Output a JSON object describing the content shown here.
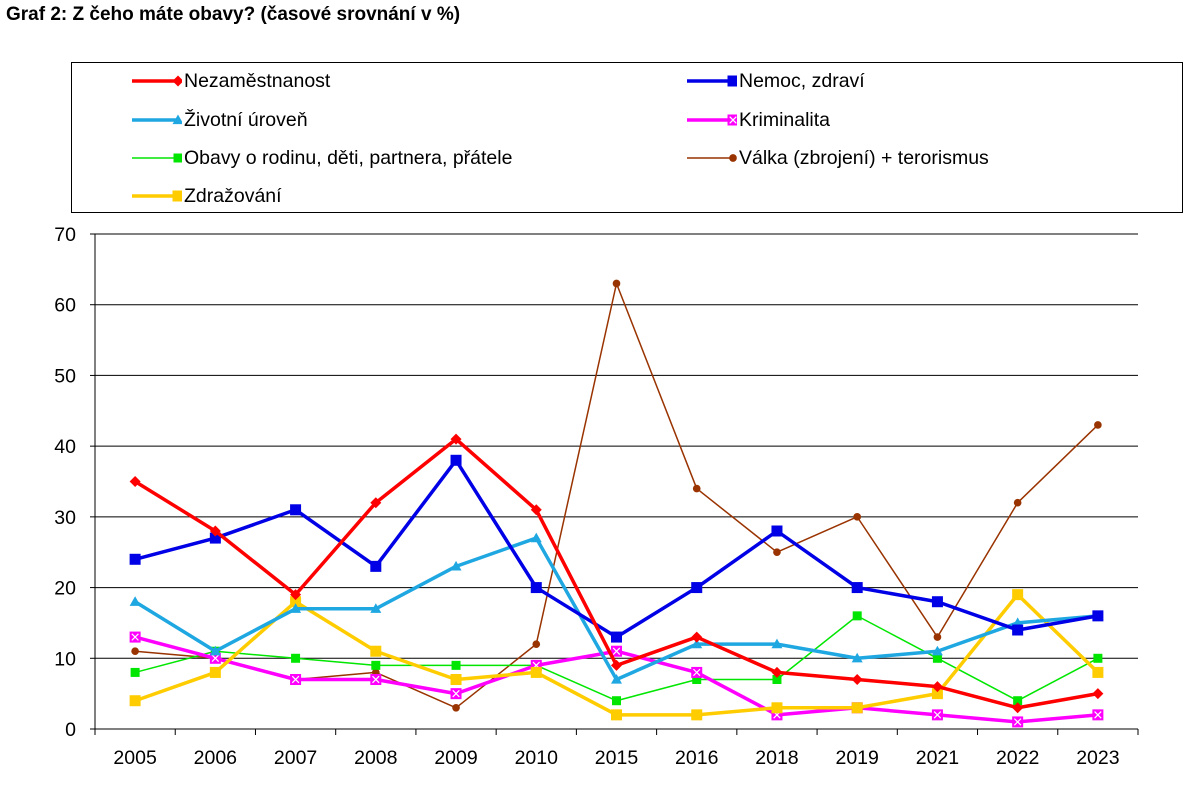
{
  "chart_data": {
    "type": "line",
    "title": "Graf 2: Z čeho máte obavy? (časové srovnání v %)",
    "xlabel": "",
    "ylabel": "",
    "categories": [
      "2005",
      "2006",
      "2007",
      "2008",
      "2009",
      "2010",
      "2015",
      "2016",
      "2018",
      "2019",
      "2021",
      "2022",
      "2023"
    ],
    "ylim": [
      0,
      70
    ],
    "yticks": [
      0,
      10,
      20,
      30,
      40,
      50,
      60,
      70
    ],
    "grid": true,
    "legend_position": "top",
    "series": [
      {
        "name": "Nezaměstnanost",
        "color": "#ff0000",
        "marker": "diamond",
        "width": 3.5,
        "values": [
          35,
          28,
          19,
          32,
          41,
          31,
          9,
          13,
          8,
          7,
          6,
          3,
          5
        ]
      },
      {
        "name": "Nemoc, zdraví",
        "color": "#0000e6",
        "marker": "square",
        "width": 3.5,
        "values": [
          24,
          27,
          31,
          23,
          38,
          20,
          13,
          20,
          28,
          20,
          18,
          14,
          16
        ]
      },
      {
        "name": "Životní úroveň",
        "color": "#1fa7e1",
        "marker": "triangle",
        "width": 3.5,
        "values": [
          18,
          11,
          17,
          17,
          23,
          27,
          7,
          12,
          12,
          10,
          11,
          15,
          16
        ]
      },
      {
        "name": "Kriminalita",
        "color": "#ff00ff",
        "marker": "xsquare",
        "width": 3.5,
        "values": [
          13,
          10,
          7,
          7,
          5,
          9,
          11,
          8,
          2,
          3,
          2,
          1,
          2
        ]
      },
      {
        "name": "Obavy o rodinu, děti, partnera, přátele",
        "color": "#00e600",
        "marker": "square",
        "width": 1.5,
        "values": [
          8,
          11,
          10,
          9,
          9,
          9,
          4,
          7,
          7,
          16,
          10,
          4,
          10
        ]
      },
      {
        "name": "Válka (zbrojení) + terorismus",
        "color": "#993300",
        "marker": "circle",
        "width": 1.5,
        "values": [
          11,
          10,
          7,
          8,
          3,
          12,
          63,
          34,
          25,
          30,
          13,
          32,
          43
        ]
      },
      {
        "name": "Zdražování",
        "color": "#ffcc00",
        "marker": "square",
        "width": 3.5,
        "values": [
          4,
          8,
          18,
          11,
          7,
          8,
          2,
          2,
          3,
          3,
          5,
          19,
          8
        ]
      }
    ]
  }
}
